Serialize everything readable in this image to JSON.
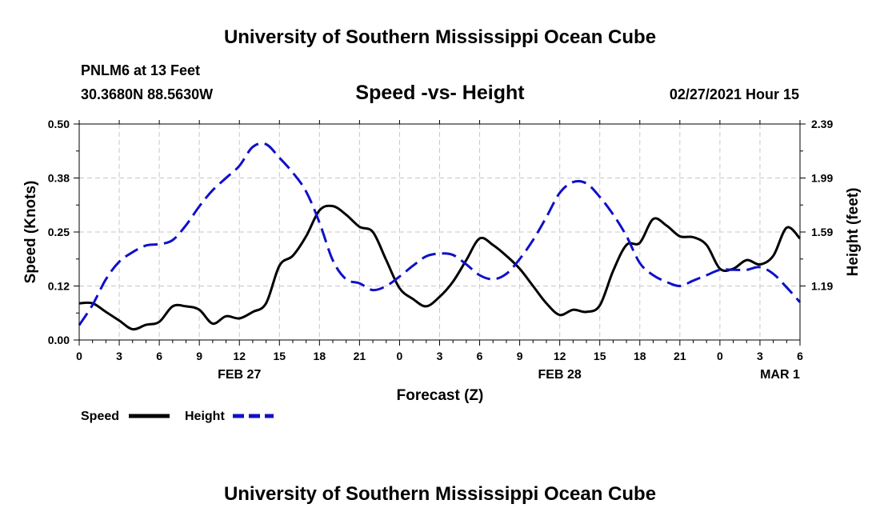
{
  "page": {
    "title_top": "University of Southern Mississippi Ocean Cube",
    "title_bottom": "University of Southern Mississippi Ocean Cube",
    "station": "PNLM6 at 13 Feet",
    "coords": "30.3680N 88.5630W",
    "chart_title": "Speed -vs- Height",
    "run_time": "02/27/2021 Hour 15"
  },
  "chart_data": {
    "type": "line",
    "title": "Speed -vs- Height",
    "xlabel": "Forecast (Z)",
    "ylabel_left": "Speed (Knots)",
    "ylabel_right": "Height (feet)",
    "x_range": [
      0,
      54
    ],
    "y_left_range": [
      0,
      0.5
    ],
    "y_right_range": [
      0.79,
      2.39
    ],
    "x_tick_values": [
      0,
      3,
      6,
      9,
      12,
      15,
      18,
      21,
      24,
      27,
      30,
      33,
      36,
      39,
      42,
      45,
      48,
      51,
      54
    ],
    "x_tick_labels": [
      "0",
      "3",
      "6",
      "9",
      "12",
      "15",
      "18",
      "21",
      "0",
      "3",
      "6",
      "9",
      "12",
      "15",
      "18",
      "21",
      "0",
      "3",
      "6"
    ],
    "y_left_ticks": [
      "0.00",
      "0.12",
      "0.25",
      "0.38",
      "0.50"
    ],
    "y_left_tick_values": [
      0,
      0.125,
      0.25,
      0.375,
      0.5
    ],
    "y_right_ticks": [
      "1.19",
      "1.59",
      "1.99",
      "2.39"
    ],
    "y_right_tick_values": [
      1.19,
      1.59,
      1.99,
      2.39
    ],
    "date_labels": [
      {
        "x": 12,
        "label": "FEB 27"
      },
      {
        "x": 36,
        "label": "FEB 28"
      },
      {
        "x": 52.5,
        "label": "MAR 1"
      }
    ],
    "grid": true,
    "series": [
      {
        "name": "Speed",
        "axis": "left",
        "color": "#000000",
        "style": "solid",
        "x": [
          0,
          1,
          2,
          3,
          4,
          5,
          6,
          7,
          8,
          9,
          10,
          11,
          12,
          13,
          14,
          15,
          16,
          17,
          18,
          19,
          20,
          21,
          22,
          23,
          24,
          25,
          26,
          27,
          28,
          29,
          30,
          31,
          32,
          33,
          34,
          35,
          36,
          37,
          38,
          39,
          40,
          41,
          42,
          43,
          44,
          45,
          46,
          47,
          48,
          49,
          50,
          51,
          52,
          53,
          54
        ],
        "values": [
          0.085,
          0.085,
          0.065,
          0.045,
          0.025,
          0.035,
          0.042,
          0.078,
          0.078,
          0.07,
          0.038,
          0.055,
          0.05,
          0.065,
          0.085,
          0.172,
          0.195,
          0.24,
          0.3,
          0.31,
          0.29,
          0.262,
          0.25,
          0.185,
          0.12,
          0.095,
          0.078,
          0.1,
          0.135,
          0.185,
          0.235,
          0.22,
          0.195,
          0.165,
          0.125,
          0.085,
          0.058,
          0.07,
          0.065,
          0.08,
          0.16,
          0.22,
          0.225,
          0.28,
          0.265,
          0.24,
          0.238,
          0.22,
          0.165,
          0.165,
          0.185,
          0.175,
          0.195,
          0.26,
          0.235
        ]
      },
      {
        "name": "Height",
        "axis": "right",
        "color": "#1010c8",
        "style": "dashed",
        "x": [
          0,
          1,
          2,
          3,
          4,
          5,
          6,
          7,
          8,
          9,
          10,
          11,
          12,
          13,
          14,
          15,
          16,
          17,
          18,
          19,
          20,
          21,
          22,
          23,
          24,
          25,
          26,
          27,
          28,
          29,
          30,
          31,
          32,
          33,
          34,
          35,
          36,
          37,
          38,
          39,
          40,
          41,
          42,
          43,
          44,
          45,
          46,
          47,
          48,
          49,
          50,
          51,
          52,
          53,
          54
        ],
        "values": [
          0.9,
          1.05,
          1.24,
          1.37,
          1.44,
          1.49,
          1.5,
          1.53,
          1.64,
          1.78,
          1.9,
          1.99,
          2.08,
          2.22,
          2.24,
          2.14,
          2.03,
          1.89,
          1.66,
          1.38,
          1.24,
          1.21,
          1.16,
          1.19,
          1.26,
          1.34,
          1.41,
          1.43,
          1.42,
          1.35,
          1.27,
          1.24,
          1.28,
          1.39,
          1.53,
          1.7,
          1.88,
          1.96,
          1.95,
          1.85,
          1.72,
          1.56,
          1.36,
          1.27,
          1.22,
          1.19,
          1.23,
          1.27,
          1.31,
          1.31,
          1.31,
          1.33,
          1.28,
          1.18,
          1.07
        ]
      }
    ],
    "legend": [
      {
        "label": "Speed",
        "color": "#000000",
        "style": "solid"
      },
      {
        "label": "Height",
        "color": "#1010c8",
        "style": "dashed"
      }
    ]
  }
}
